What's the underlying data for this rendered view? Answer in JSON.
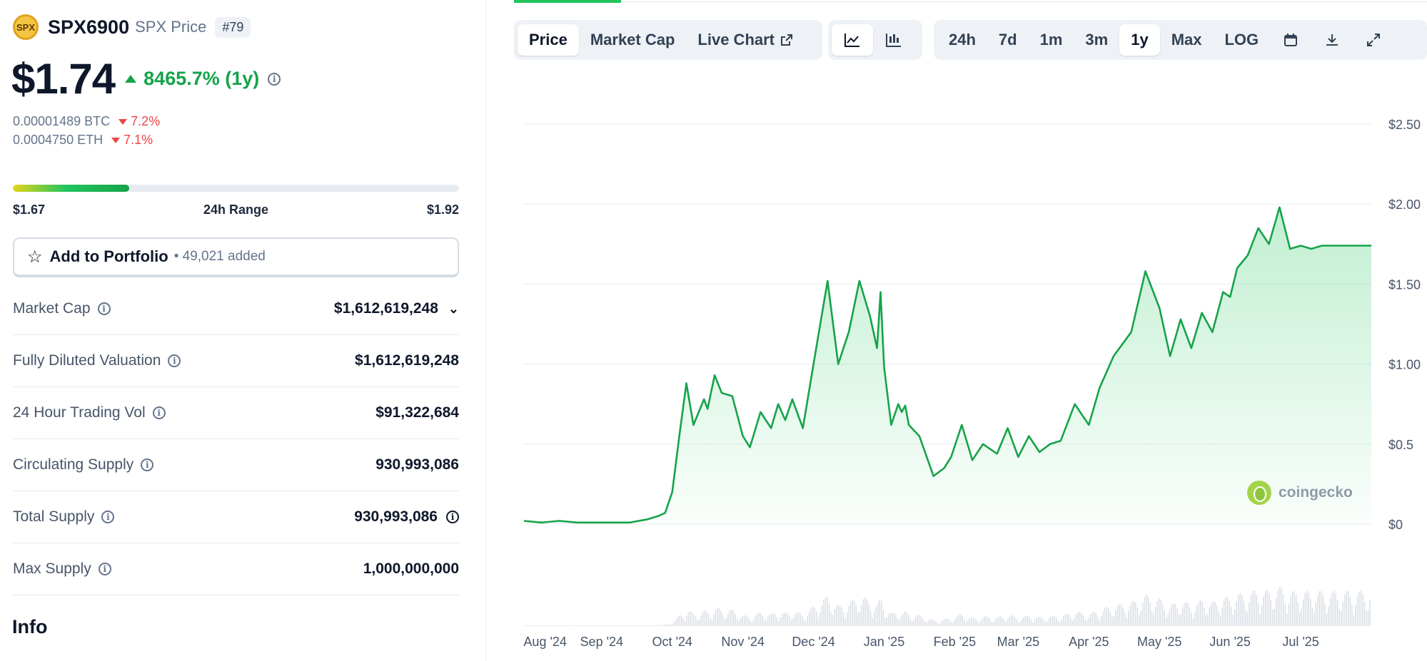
{
  "coin": {
    "logo_text": "SPX",
    "name": "SPX6900",
    "subtitle": "SPX Price",
    "rank": "#79",
    "price": "$1.74",
    "change": "8465.7% (1y)",
    "btc_price": "0.00001489 BTC",
    "btc_change": "7.2%",
    "eth_price": "0.0004750 ETH",
    "eth_change": "7.1%"
  },
  "range": {
    "low": "$1.67",
    "label": "24h Range",
    "high": "$1.92",
    "fill_fraction": 0.26
  },
  "portfolio": {
    "label": "Add to Portfolio",
    "count": "• 49,021 added"
  },
  "stats": [
    {
      "label": "Market Cap",
      "value": "$1,612,619,248"
    },
    {
      "label": "Fully Diluted Valuation",
      "value": "$1,612,619,248"
    },
    {
      "label": "24 Hour Trading Vol",
      "value": "$91,322,684"
    },
    {
      "label": "Circulating Supply",
      "value": "930,993,086"
    },
    {
      "label": "Total Supply",
      "value": "930,993,086"
    },
    {
      "label": "Max Supply",
      "value": "1,000,000,000"
    }
  ],
  "info_title": "Info",
  "toolbar": {
    "tabs": [
      "Price",
      "Market Cap",
      "Live Chart"
    ],
    "active_tab": "Price",
    "chart_types": [
      "line-chart-icon",
      "candlestick-icon"
    ],
    "ranges": [
      "24h",
      "7d",
      "1m",
      "3m",
      "1y",
      "Max",
      "LOG"
    ],
    "active_range": "1y",
    "actions": [
      "calendar-icon",
      "download-icon",
      "fullscreen-icon"
    ]
  },
  "watermark": "coingecko",
  "colors": {
    "up": "#16a34a",
    "down": "#ef4444",
    "line": "#16a34a"
  },
  "chart_data": {
    "type": "area",
    "title": "",
    "xlabel": "",
    "ylabel": "",
    "ylim": [
      0,
      2.5
    ],
    "y_ticks": [
      "$0",
      "$0.5",
      "$1.00",
      "$1.50",
      "$2.00",
      "$2.50"
    ],
    "x_ticks": [
      "Aug '24",
      "Sep '24",
      "Oct '24",
      "Nov '24",
      "Dec '24",
      "Jan '25",
      "Feb '25",
      "Mar '25",
      "Apr '25",
      "May '25",
      "Jun '25",
      "Jul '25"
    ],
    "x_tick_month_index": [
      0.3,
      1.1,
      2.1,
      3.1,
      4.1,
      5.1,
      6.1,
      7.0,
      8.0,
      9.0,
      10.0,
      11.0
    ],
    "series": [
      {
        "x_month_index": [
          0,
          0.25,
          0.5,
          0.75,
          1.0,
          1.25,
          1.5,
          1.75,
          1.9,
          2.0,
          2.1,
          2.2,
          2.3,
          2.4,
          2.55,
          2.6,
          2.7,
          2.8,
          2.95,
          3.1,
          3.2,
          3.35,
          3.5,
          3.6,
          3.7,
          3.8,
          3.95,
          4.1,
          4.3,
          4.45,
          4.6,
          4.75,
          4.9,
          5.0,
          5.05,
          5.1,
          5.2,
          5.3,
          5.35,
          5.4,
          5.45,
          5.6,
          5.8,
          5.95,
          6.05,
          6.2,
          6.35,
          6.5,
          6.7,
          6.85,
          7.0,
          7.15,
          7.3,
          7.45,
          7.6,
          7.8,
          8.0,
          8.15,
          8.35,
          8.6,
          8.8,
          9.0,
          9.15,
          9.3,
          9.45,
          9.6,
          9.75,
          9.9,
          10.0,
          10.1,
          10.25,
          10.4,
          10.55,
          10.7,
          10.85,
          11.0,
          11.15,
          11.3,
          11.45,
          11.6,
          11.7,
          11.8,
          11.9,
          12.0
        ],
        "values": [
          0.02,
          0.01,
          0.02,
          0.01,
          0.01,
          0.01,
          0.01,
          0.03,
          0.05,
          0.07,
          0.2,
          0.55,
          0.88,
          0.62,
          0.78,
          0.72,
          0.93,
          0.82,
          0.8,
          0.55,
          0.48,
          0.7,
          0.6,
          0.75,
          0.65,
          0.78,
          0.6,
          1.0,
          1.52,
          1.0,
          1.2,
          1.52,
          1.3,
          1.1,
          1.45,
          0.98,
          0.62,
          0.75,
          0.7,
          0.74,
          0.62,
          0.55,
          0.3,
          0.35,
          0.42,
          0.62,
          0.4,
          0.5,
          0.44,
          0.6,
          0.42,
          0.55,
          0.45,
          0.5,
          0.52,
          0.75,
          0.62,
          0.85,
          1.05,
          1.2,
          1.58,
          1.35,
          1.05,
          1.28,
          1.1,
          1.32,
          1.2,
          1.45,
          1.42,
          1.6,
          1.68,
          1.85,
          1.75,
          1.98,
          1.72,
          1.74,
          1.72,
          1.74,
          1.74,
          1.74,
          1.74,
          1.74,
          1.74,
          1.74
        ]
      }
    ]
  }
}
